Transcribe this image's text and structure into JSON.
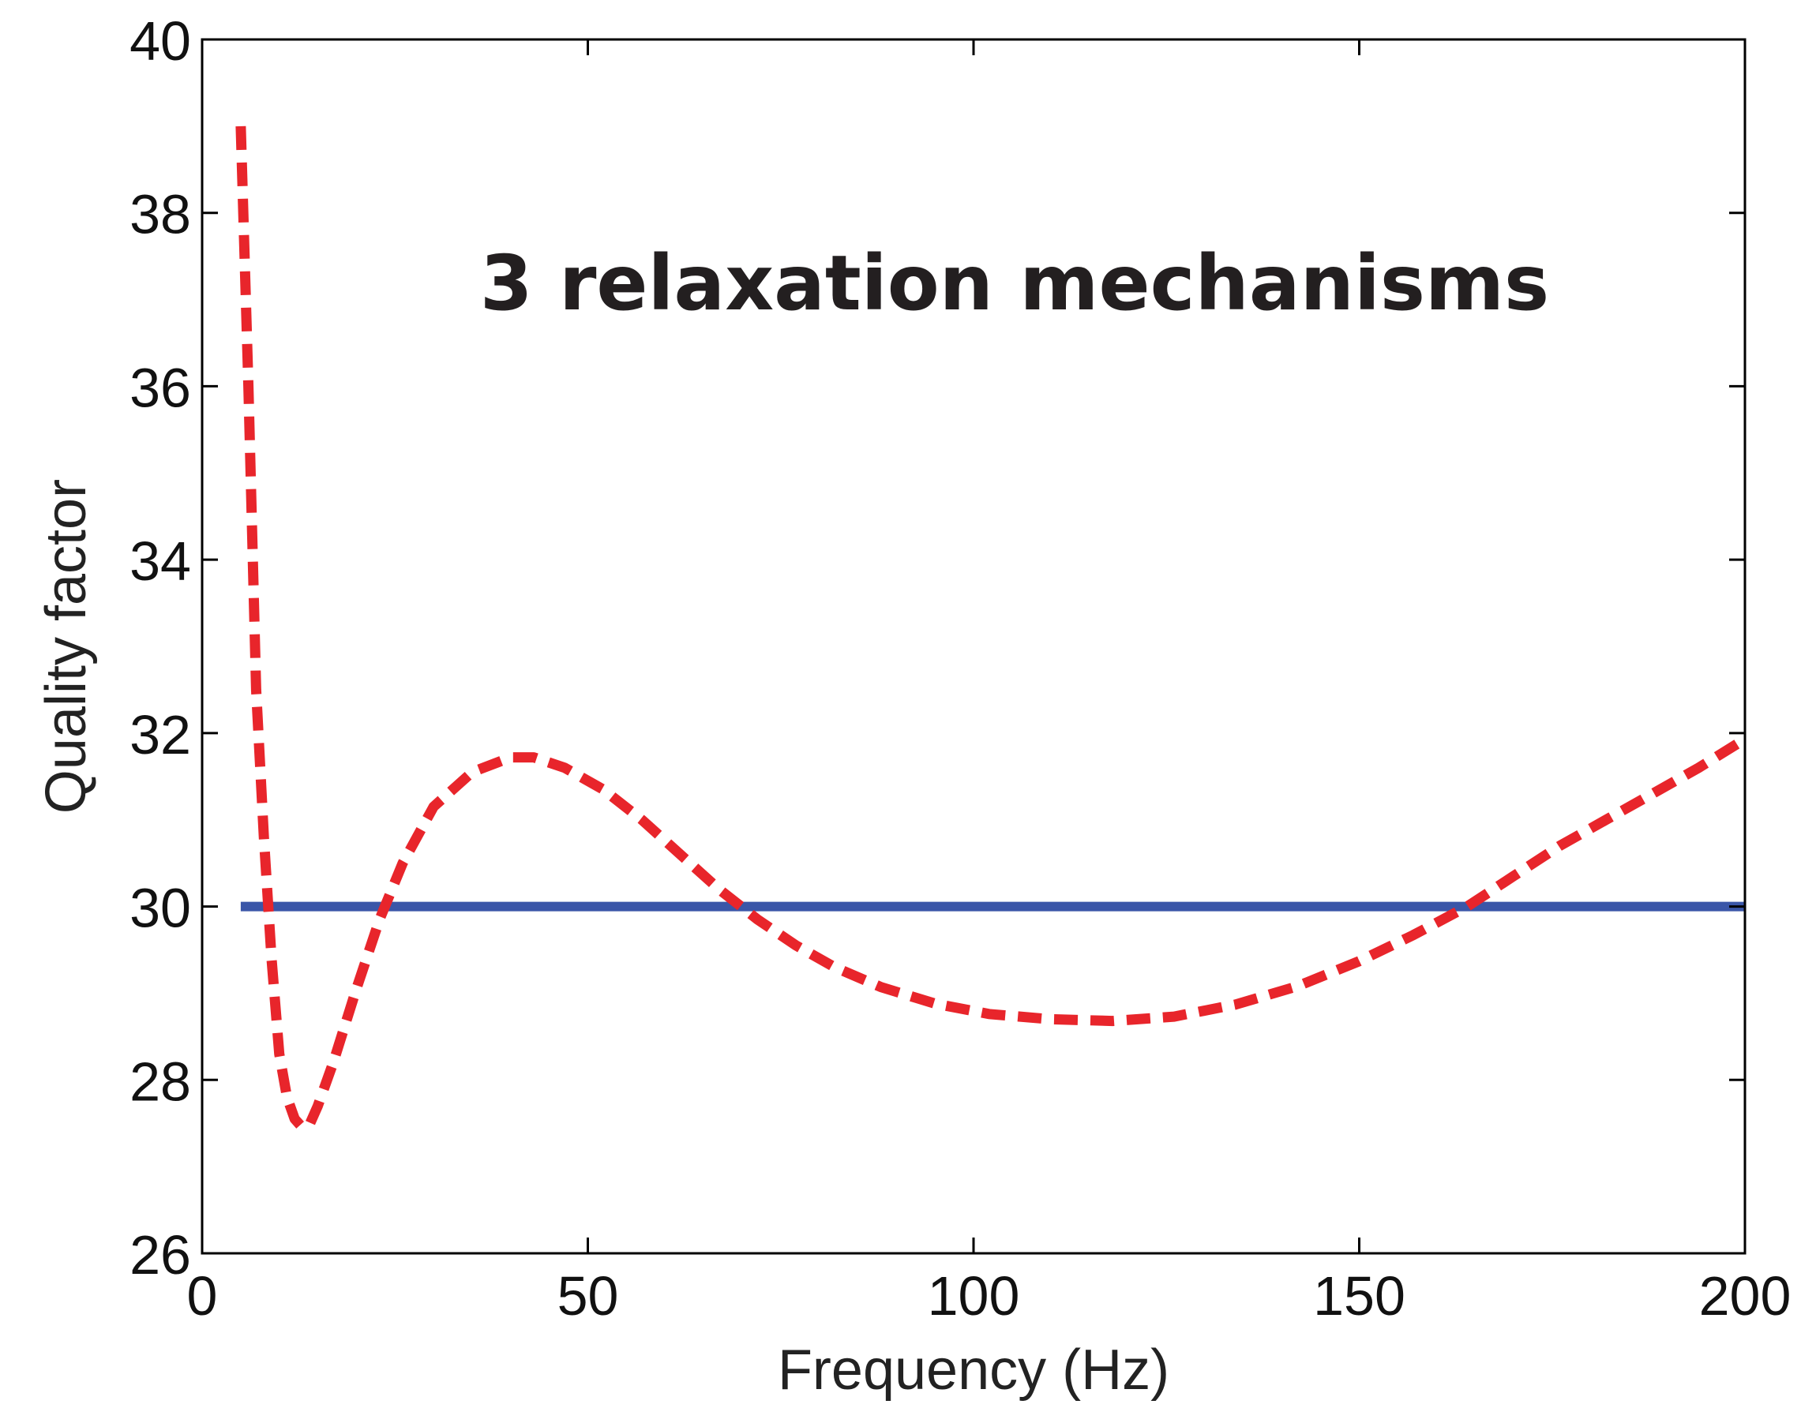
{
  "chart_data": {
    "type": "line",
    "title": "",
    "xlabel": "Frequency (Hz)",
    "ylabel": "Quality factor",
    "xlim": [
      0,
      200
    ],
    "ylim": [
      26,
      40
    ],
    "x_ticks": [
      0,
      50,
      100,
      150,
      200
    ],
    "y_ticks": [
      26,
      28,
      30,
      32,
      34,
      36,
      38,
      40
    ],
    "x_tick_labels": [
      "0",
      "50",
      "100",
      "150",
      "200"
    ],
    "y_tick_labels": [
      "26",
      "28",
      "30",
      "32",
      "34",
      "36",
      "38",
      "40"
    ],
    "grid": false,
    "annotation": "3 relaxation mechanisms",
    "series": [
      {
        "style": "solid",
        "color": "#3a56a8",
        "x": [
          5,
          200
        ],
        "y": [
          30.0,
          30.0
        ]
      },
      {
        "style": "dashed",
        "color": "#e8252b",
        "x": [
          5,
          6,
          7,
          8,
          9,
          10,
          11,
          12,
          13,
          14,
          15,
          17,
          20,
          23,
          26,
          30,
          35,
          40,
          43,
          47,
          52,
          57,
          62,
          67,
          72,
          77,
          82,
          88,
          95,
          102,
          110,
          118,
          126,
          134,
          142,
          150,
          157,
          164,
          170,
          176,
          182,
          188,
          194,
          200
        ],
        "y": [
          39.0,
          36.0,
          32.5,
          30.8,
          29.4,
          28.3,
          27.8,
          27.55,
          27.45,
          27.5,
          27.7,
          28.2,
          29.05,
          29.85,
          30.5,
          31.15,
          31.55,
          31.72,
          31.72,
          31.6,
          31.35,
          31.0,
          30.6,
          30.2,
          29.85,
          29.55,
          29.3,
          29.07,
          28.88,
          28.76,
          28.7,
          28.68,
          28.73,
          28.87,
          29.08,
          29.37,
          29.67,
          30.0,
          30.35,
          30.7,
          31.0,
          31.3,
          31.6,
          31.93
        ]
      }
    ]
  }
}
